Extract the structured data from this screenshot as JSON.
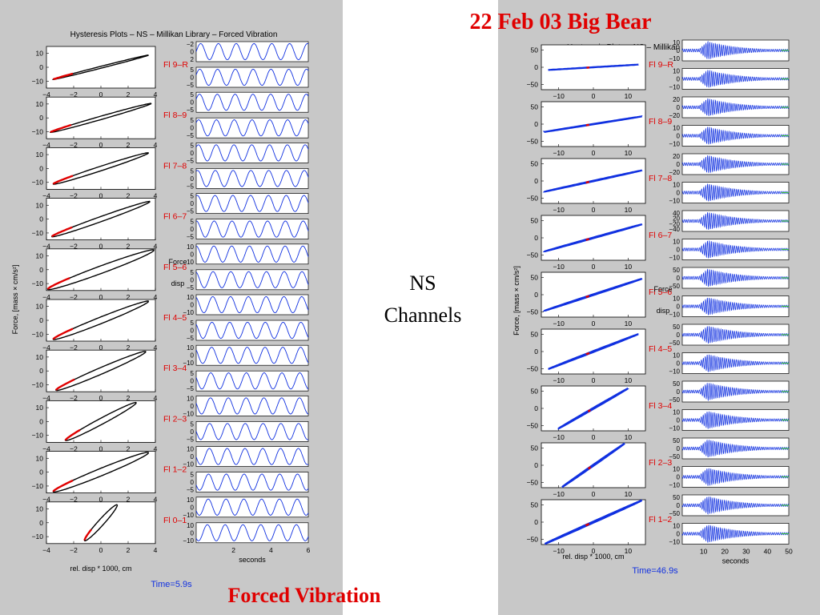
{
  "slide": {
    "title_right": "22 Feb 03 Big Bear",
    "title_bottom": "Forced Vibration",
    "center_label": [
      "NS",
      "Channels"
    ],
    "accent_color": "#e00000",
    "panel_bg": "#c8c8c8",
    "fig_bg": "#ffffff"
  },
  "chart_data": [
    {
      "type": "line",
      "title": "Hysteresis Plots – NS – Millikan Library – Forced Vibration",
      "ylabel": "Force, [mass × cm/s²]",
      "xlabel": "rel. disp * 1000, cm",
      "time_xlabel": "seconds",
      "time_label": "Time=5.9s",
      "legend_force": "Force",
      "legend_disp": "disp",
      "hyst_xlim": [
        -4,
        4
      ],
      "hyst_xticks": [
        -4,
        -2,
        0,
        2,
        4
      ],
      "hyst_yticks": [
        -10,
        0,
        10
      ],
      "hyst_ylim": [
        -15,
        15
      ],
      "time_xlim": [
        0,
        6
      ],
      "time_xticks": [
        2,
        4,
        6
      ],
      "time_cycles": 6.3,
      "floors": [
        {
          "label": "Fl 9–R",
          "amp": 3.5,
          "slope": 2.5,
          "width": 0.08,
          "f_ticks": [
            -2,
            0,
            2
          ],
          "d_ticks": [
            5,
            0,
            -5
          ]
        },
        {
          "label": "Fl 8–9",
          "amp": 3.7,
          "slope": 2.8,
          "width": 0.12,
          "f_ticks": [
            5,
            0,
            -5
          ],
          "d_ticks": [
            5,
            0,
            -5
          ]
        },
        {
          "label": "Fl 7–8",
          "amp": 3.5,
          "slope": 3.2,
          "width": 0.15,
          "f_ticks": [
            5,
            0,
            -5
          ],
          "d_ticks": [
            5,
            0,
            -5
          ]
        },
        {
          "label": "Fl 6–7",
          "amp": 3.6,
          "slope": 3.5,
          "width": 0.15,
          "f_ticks": [
            5,
            0,
            -5
          ],
          "d_ticks": [
            5,
            0,
            -5
          ]
        },
        {
          "label": "Fl 5–6",
          "amp": 3.9,
          "slope": 3.6,
          "width": 0.2,
          "f_ticks": [
            10,
            0,
            -10
          ],
          "d_ticks": [
            5,
            0,
            -5
          ]
        },
        {
          "label": "Fl 4–5",
          "amp": 3.5,
          "slope": 3.9,
          "width": 0.18,
          "f_ticks": [
            10,
            0,
            -10
          ],
          "d_ticks": [
            5,
            0,
            -5
          ]
        },
        {
          "label": "Fl 3–4",
          "amp": 3.3,
          "slope": 4.2,
          "width": 0.18,
          "f_ticks": [
            10,
            0,
            -10
          ],
          "d_ticks": [
            5,
            0,
            -5
          ]
        },
        {
          "label": "Fl 2–3",
          "amp": 2.6,
          "slope": 5.2,
          "width": 0.18,
          "f_ticks": [
            10,
            0,
            -10
          ],
          "d_ticks": [
            5,
            0,
            -5
          ]
        },
        {
          "label": "Fl 1–2",
          "amp": 3.5,
          "slope": 4.0,
          "width": 0.2,
          "f_ticks": [
            10,
            0,
            -10
          ],
          "d_ticks": [
            5,
            0,
            -5
          ]
        },
        {
          "label": "Fl 0–1",
          "amp": 1.2,
          "slope": 10.5,
          "width": 0.25,
          "f_ticks": [
            10,
            0,
            -10
          ],
          "d_ticks": [
            10,
            0,
            -10
          ]
        }
      ]
    },
    {
      "type": "line",
      "title": "Hysteresis Plots – NS – Millikan Library – Big Bear",
      "ylabel": "Force, [mass × cm/s²]",
      "xlabel": "rel. disp * 1000, cm",
      "time_xlabel": "seconds",
      "time_label": "Time=46.9s",
      "legend_force": "Force",
      "legend_disp": "disp",
      "hyst_xlim": [
        -15,
        15
      ],
      "hyst_xticks": [
        -10,
        0,
        10
      ],
      "hyst_yticks": [
        -50,
        0,
        50
      ],
      "hyst_ylim": [
        -65,
        65
      ],
      "time_xlim": [
        0,
        50
      ],
      "time_xticks": [
        10,
        20,
        30,
        40,
        50
      ],
      "time_cycles": 55,
      "floors": [
        {
          "label": "Fl 9–R",
          "amp": 13,
          "slope": 0.6,
          "width": 0.03,
          "f_ticks": [
            10,
            0,
            -10
          ],
          "d_ticks": [
            10,
            0,
            -10
          ]
        },
        {
          "label": "Fl 8–9",
          "amp": 14,
          "slope": 1.6,
          "width": 0.03,
          "f_ticks": [
            20,
            0,
            -20
          ],
          "d_ticks": [
            10,
            0,
            -10
          ]
        },
        {
          "label": "Fl 7–8",
          "amp": 14,
          "slope": 2.2,
          "width": 0.03,
          "f_ticks": [
            20,
            0,
            -20
          ],
          "d_ticks": [
            10,
            0,
            -10
          ]
        },
        {
          "label": "Fl 6–7",
          "amp": 14,
          "slope": 2.8,
          "width": 0.03,
          "f_ticks": [
            40,
            20,
            -20,
            -40
          ],
          "d_ticks": [
            10,
            0,
            -10
          ]
        },
        {
          "label": "Fl 5–6",
          "amp": 14,
          "slope": 3.3,
          "width": 0.03,
          "f_ticks": [
            50,
            0,
            -50
          ],
          "d_ticks": [
            10,
            0,
            -10
          ]
        },
        {
          "label": "Fl 4–5",
          "amp": 13,
          "slope": 3.9,
          "width": 0.03,
          "f_ticks": [
            50,
            0,
            -50
          ],
          "d_ticks": [
            10,
            0,
            -10
          ]
        },
        {
          "label": "Fl 3–4",
          "amp": 10,
          "slope": 5.8,
          "width": 0.03,
          "f_ticks": [
            50,
            0,
            -50
          ],
          "d_ticks": [
            10,
            0,
            -10
          ]
        },
        {
          "label": "Fl 2–3",
          "amp": 9,
          "slope": 7.0,
          "width": 0.03,
          "f_ticks": [
            50,
            0,
            -50
          ],
          "d_ticks": [
            10,
            0,
            -10
          ]
        },
        {
          "label": "Fl 1–2",
          "amp": 14,
          "slope": 4.5,
          "width": 0.03,
          "f_ticks": [
            50,
            0,
            -50
          ],
          "d_ticks": [
            10,
            0,
            -10
          ]
        }
      ]
    }
  ]
}
